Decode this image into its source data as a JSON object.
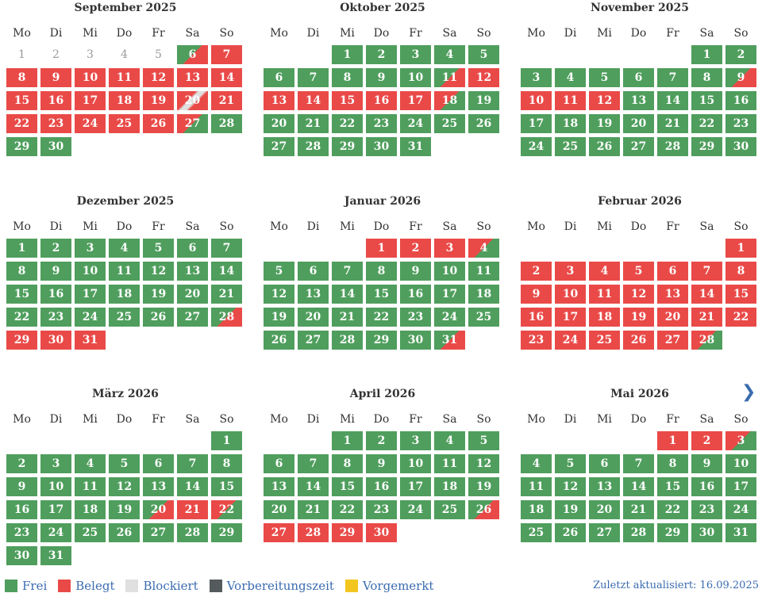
{
  "colors": {
    "frei": "#4f9e5d",
    "belegt": "#e94a48",
    "blockiert": "#e0e0e0",
    "vorbereitungszeit": "#555a5c",
    "vorgemerkt": "#f2c61f"
  },
  "weekdays": [
    "Mo",
    "Di",
    "Mi",
    "Do",
    "Fr",
    "Sa",
    "So"
  ],
  "months": [
    {
      "title": "September 2025",
      "offset": 0,
      "days": [
        "p",
        "p",
        "p",
        "p",
        "p",
        "gr",
        "r",
        "r",
        "r",
        "r",
        "r",
        "r",
        "r",
        "r",
        "r",
        "r",
        "r",
        "r",
        "r",
        "rgr",
        "r",
        "r",
        "r",
        "r",
        "r",
        "r",
        "rg",
        "g",
        "g",
        "g"
      ]
    },
    {
      "title": "Oktober 2025",
      "offset": 2,
      "days": [
        "g",
        "g",
        "g",
        "g",
        "g",
        "g",
        "g",
        "g",
        "g",
        "g",
        "gr",
        "r",
        "r",
        "r",
        "r",
        "r",
        "r",
        "rg",
        "g",
        "g",
        "g",
        "g",
        "g",
        "g",
        "g",
        "g",
        "g",
        "g",
        "g",
        "g",
        "g"
      ]
    },
    {
      "title": "November 2025",
      "offset": 5,
      "days": [
        "g",
        "g",
        "g",
        "g",
        "g",
        "g",
        "g",
        "g",
        "gr",
        "r",
        "r",
        "r",
        "g",
        "g",
        "g",
        "g",
        "g",
        "g",
        "g",
        "g",
        "g",
        "g",
        "g",
        "g",
        "g",
        "g",
        "g",
        "g",
        "g",
        "g"
      ]
    },
    {
      "title": "Dezember 2025",
      "offset": 0,
      "days": [
        "g",
        "g",
        "g",
        "g",
        "g",
        "g",
        "g",
        "g",
        "g",
        "g",
        "g",
        "g",
        "g",
        "g",
        "g",
        "g",
        "g",
        "g",
        "g",
        "g",
        "g",
        "g",
        "g",
        "g",
        "g",
        "g",
        "g",
        "gr",
        "r",
        "r",
        "r"
      ]
    },
    {
      "title": "Januar 2026",
      "offset": 3,
      "days": [
        "r",
        "r",
        "r",
        "rg",
        "g",
        "g",
        "g",
        "g",
        "g",
        "g",
        "g",
        "g",
        "g",
        "g",
        "g",
        "g",
        "g",
        "g",
        "g",
        "g",
        "g",
        "g",
        "g",
        "g",
        "g",
        "g",
        "g",
        "g",
        "g",
        "g",
        "gr"
      ]
    },
    {
      "title": "Februar 2026",
      "offset": 6,
      "days": [
        "r",
        "r",
        "r",
        "r",
        "r",
        "r",
        "r",
        "r",
        "r",
        "r",
        "r",
        "r",
        "r",
        "r",
        "r",
        "r",
        "r",
        "r",
        "r",
        "r",
        "r",
        "r",
        "r",
        "r",
        "r",
        "r",
        "r",
        "rg"
      ]
    },
    {
      "title": "März 2026",
      "offset": 6,
      "days": [
        "g",
        "g",
        "g",
        "g",
        "g",
        "g",
        "g",
        "g",
        "g",
        "g",
        "g",
        "g",
        "g",
        "g",
        "g",
        "g",
        "g",
        "g",
        "g",
        "gr",
        "r",
        "rg",
        "g",
        "g",
        "g",
        "g",
        "g",
        "g",
        "g",
        "g",
        "g"
      ]
    },
    {
      "title": "April 2026",
      "offset": 2,
      "days": [
        "g",
        "g",
        "g",
        "g",
        "g",
        "g",
        "g",
        "g",
        "g",
        "g",
        "g",
        "g",
        "g",
        "g",
        "g",
        "g",
        "g",
        "g",
        "g",
        "g",
        "g",
        "g",
        "g",
        "g",
        "g",
        "gr",
        "r",
        "r",
        "r",
        "r"
      ]
    },
    {
      "title": "Mai 2026",
      "offset": 4,
      "days": [
        "r",
        "r",
        "rg",
        "g",
        "g",
        "g",
        "g",
        "g",
        "g",
        "g",
        "g",
        "g",
        "g",
        "g",
        "g",
        "g",
        "g",
        "g",
        "g",
        "g",
        "g",
        "g",
        "g",
        "g",
        "g",
        "g",
        "g",
        "g",
        "g",
        "g",
        "g"
      ]
    }
  ],
  "nav": {
    "next_icon": "chevron-right-icon",
    "next_label": "❯"
  },
  "legend": [
    {
      "key": "frei",
      "label": "Frei"
    },
    {
      "key": "belegt",
      "label": "Belegt"
    },
    {
      "key": "blockiert",
      "label": "Blockiert"
    },
    {
      "key": "vorbereitungszeit",
      "label": "Vorbereitungszeit"
    },
    {
      "key": "vorgemerkt",
      "label": "Vorgemerkt"
    }
  ],
  "updated": "Zuletzt aktualisiert: 16.09.2025"
}
